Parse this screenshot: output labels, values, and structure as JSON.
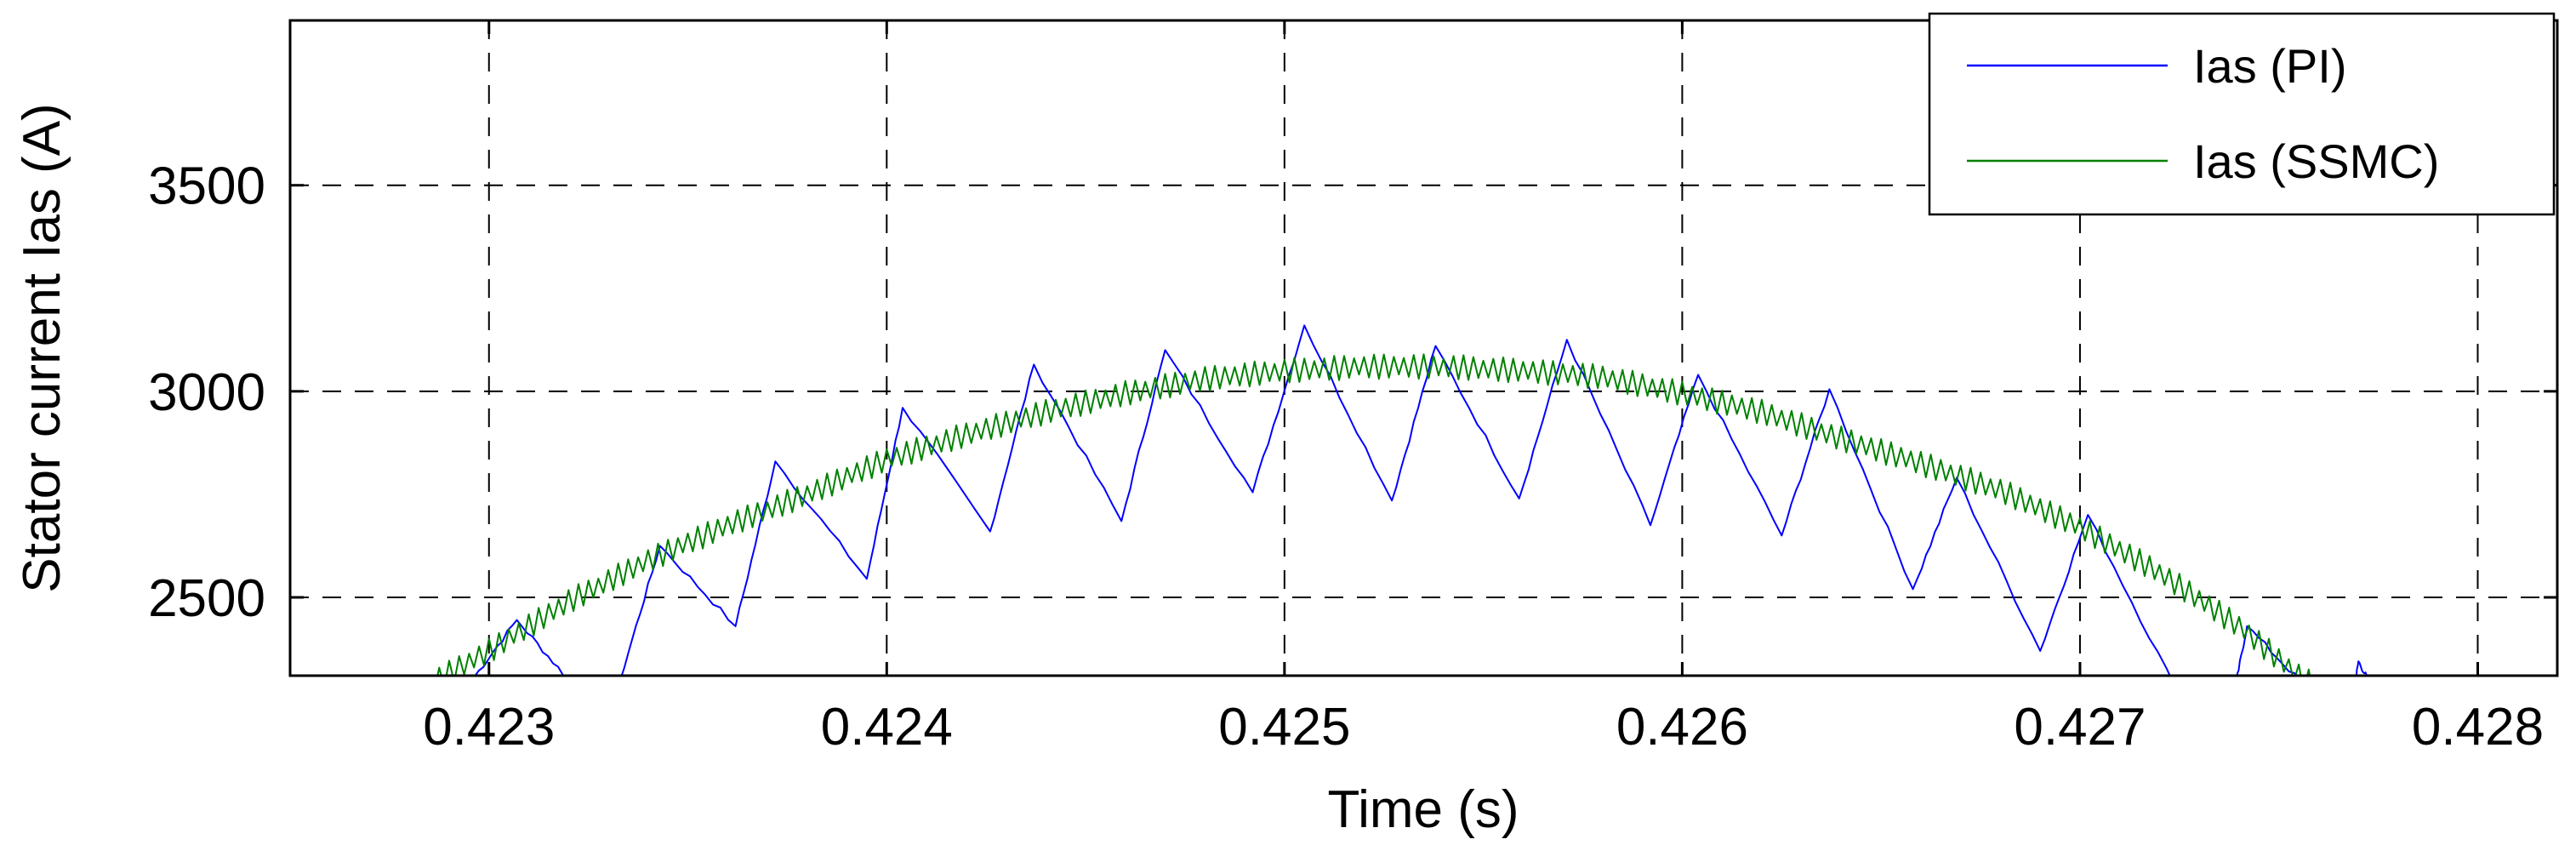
{
  "chart_data": {
    "type": "line",
    "title": "",
    "xlabel": "Time (s)",
    "ylabel": "Stator current Ias (A)",
    "xlim": [
      0.4225,
      0.4282
    ],
    "ylim": [
      2310,
      3900
    ],
    "xticks": [
      0.423,
      0.424,
      0.425,
      0.426,
      0.427,
      0.428
    ],
    "xtick_labels": [
      "0.423",
      "0.424",
      "0.425",
      "0.426",
      "0.427",
      "0.428"
    ],
    "yticks": [
      2500,
      3000,
      3500
    ],
    "ytick_labels": [
      "2500",
      "3000",
      "3500"
    ],
    "grid": true,
    "grid_style": "dashed",
    "legend_position": "top-right",
    "colors": {
      "pi": "#0000ff",
      "ssmc": "#008000"
    },
    "series": [
      {
        "name": "Ias (PI)",
        "color": "#0000ff",
        "points": [
          [
            0.42295,
            2290
          ],
          [
            0.42307,
            2445
          ],
          [
            0.4232,
            2300
          ],
          [
            0.42333,
            2300
          ],
          [
            0.42343,
            2625
          ],
          [
            0.42362,
            2430
          ],
          [
            0.42372,
            2830
          ],
          [
            0.42395,
            2545
          ],
          [
            0.42404,
            2960
          ],
          [
            0.42426,
            2660
          ],
          [
            0.42437,
            3065
          ],
          [
            0.42459,
            2685
          ],
          [
            0.4247,
            3100
          ],
          [
            0.42492,
            2755
          ],
          [
            0.42505,
            3160
          ],
          [
            0.42527,
            2735
          ],
          [
            0.42538,
            3110
          ],
          [
            0.42559,
            2740
          ],
          [
            0.42571,
            3125
          ],
          [
            0.42592,
            2675
          ],
          [
            0.42604,
            3040
          ],
          [
            0.42625,
            2650
          ],
          [
            0.42637,
            3005
          ],
          [
            0.42658,
            2520
          ],
          [
            0.42669,
            2790
          ],
          [
            0.4269,
            2370
          ],
          [
            0.42702,
            2700
          ],
          [
            0.42724,
            2280
          ],
          [
            0.42739,
            2280
          ],
          [
            0.42742,
            2430
          ],
          [
            0.42757,
            2280
          ],
          [
            0.42769,
            2280
          ],
          [
            0.4277,
            2345
          ],
          [
            0.42773,
            2290
          ]
        ]
      },
      {
        "name": "Ias (SSMC)",
        "color": "#008000",
        "points": [
          [
            0.42285,
            2290
          ],
          [
            0.423,
            2370
          ],
          [
            0.4232,
            2490
          ],
          [
            0.4234,
            2590
          ],
          [
            0.4236,
            2675
          ],
          [
            0.4238,
            2750
          ],
          [
            0.424,
            2835
          ],
          [
            0.4242,
            2895
          ],
          [
            0.4244,
            2950
          ],
          [
            0.4246,
            2995
          ],
          [
            0.4248,
            3030
          ],
          [
            0.425,
            3050
          ],
          [
            0.4252,
            3060
          ],
          [
            0.4254,
            3060
          ],
          [
            0.4256,
            3050
          ],
          [
            0.4258,
            3035
          ],
          [
            0.426,
            2995
          ],
          [
            0.4262,
            2950
          ],
          [
            0.4264,
            2885
          ],
          [
            0.4266,
            2825
          ],
          [
            0.4268,
            2760
          ],
          [
            0.427,
            2670
          ],
          [
            0.4272,
            2560
          ],
          [
            0.4274,
            2430
          ],
          [
            0.42755,
            2310
          ],
          [
            0.4276,
            2280
          ]
        ],
        "ripple_amplitude": 30
      }
    ]
  }
}
